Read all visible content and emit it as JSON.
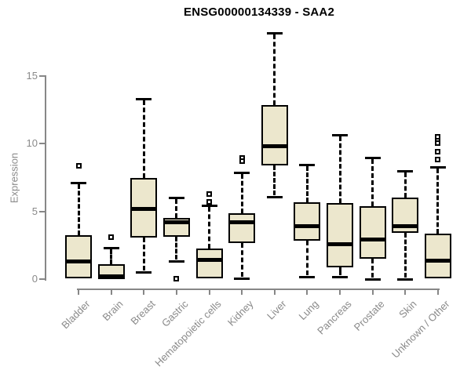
{
  "title": "ENSG00000134339 - SAA2",
  "colors": {
    "box_fill": "#ECE7CD",
    "box_stroke": "#000000",
    "axis": "#878787",
    "axis_text": "#8a8a8a",
    "title_text": "#000000"
  },
  "chart_data": {
    "type": "boxplot",
    "title": "ENSG00000134339 - SAA2",
    "xlabel": "",
    "ylabel": "Expression",
    "ylim": [
      0,
      18.5
    ],
    "yticks": [
      0,
      5,
      10,
      15
    ],
    "grid": false,
    "legend": false,
    "categories": [
      "Bladder",
      "Brain",
      "Breast",
      "Gastric",
      "Hematopoietic cells",
      "Kidney",
      "Liver",
      "Lung",
      "Pancreas",
      "Prostate",
      "Skin",
      "Unknown / Other"
    ],
    "series": [
      {
        "name": "Bladder",
        "low": 0.05,
        "q1": 0.05,
        "median": 1.3,
        "q3": 3.25,
        "high": 7.1,
        "outliers": [
          8.35
        ]
      },
      {
        "name": "Brain",
        "low": 0.02,
        "q1": 0.02,
        "median": 0.2,
        "q3": 1.1,
        "high": 2.3,
        "outliers": [
          3.1
        ]
      },
      {
        "name": "Breast",
        "low": 0.5,
        "q1": 3.05,
        "median": 5.2,
        "q3": 7.5,
        "high": 13.3,
        "outliers": []
      },
      {
        "name": "Gastric",
        "low": 1.35,
        "q1": 3.15,
        "median": 4.2,
        "q3": 4.5,
        "high": 6.0,
        "outliers": [
          0.05
        ]
      },
      {
        "name": "Hematopoietic cells",
        "low": 0.05,
        "q1": 0.05,
        "median": 1.4,
        "q3": 2.25,
        "high": 5.45,
        "outliers": [
          6.3,
          5.7
        ]
      },
      {
        "name": "Kidney",
        "low": 0.05,
        "q1": 2.65,
        "median": 4.2,
        "q3": 4.85,
        "high": 7.9,
        "outliers": [
          8.95,
          8.7
        ]
      },
      {
        "name": "Liver",
        "low": 6.1,
        "q1": 8.4,
        "median": 9.8,
        "q3": 12.85,
        "high": 18.2,
        "outliers": []
      },
      {
        "name": "Lung",
        "low": 0.15,
        "q1": 2.85,
        "median": 3.9,
        "q3": 5.7,
        "high": 8.45,
        "outliers": []
      },
      {
        "name": "Pancreas",
        "low": 0.15,
        "q1": 0.85,
        "median": 2.55,
        "q3": 5.6,
        "high": 10.65,
        "outliers": []
      },
      {
        "name": "Prostate",
        "low": 0.02,
        "q1": 1.5,
        "median": 2.9,
        "q3": 5.4,
        "high": 9.0,
        "outliers": []
      },
      {
        "name": "Skin",
        "low": 0.02,
        "q1": 3.4,
        "median": 3.9,
        "q3": 6.0,
        "high": 8.0,
        "outliers": []
      },
      {
        "name": "Unknown / Other",
        "low": 0.05,
        "q1": 0.05,
        "median": 1.35,
        "q3": 3.35,
        "high": 8.3,
        "outliers": [
          10.5,
          10.25,
          10.05,
          9.4,
          8.85
        ]
      }
    ]
  }
}
